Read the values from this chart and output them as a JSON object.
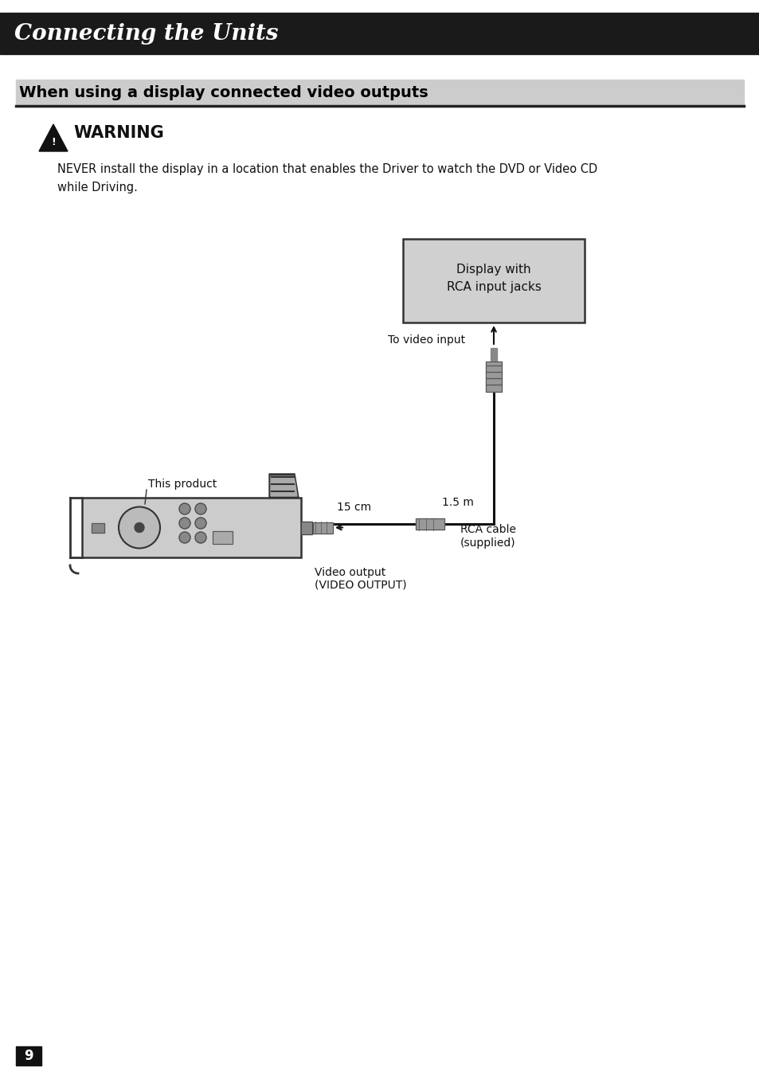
{
  "page_bg": "#ffffff",
  "header_bg": "#1a1a1a",
  "header_text": "Connecting the Units",
  "header_text_color": "#ffffff",
  "section_bg": "#cccccc",
  "section_text": "When using a display connected video outputs",
  "section_text_color": "#000000",
  "warning_text": "WARNING",
  "warning_line1": "NEVER install the display in a location that enables the Driver to watch the DVD or Video CD",
  "warning_line2": "while Driving.",
  "display_box_text_line1": "Display with",
  "display_box_text_line2": "RCA input jacks",
  "display_box_bg": "#d0d0d0",
  "to_video_input_label": "To video input",
  "rca_label_line1": "RCA cable",
  "rca_label_line2": "(supplied)",
  "video_output_label_line1": "Video output",
  "video_output_label_line2": "(VIDEO OUTPUT)",
  "this_product_label": "This product",
  "distance_15cm": "15 cm",
  "distance_15m": "1.5 m",
  "page_number": "9"
}
